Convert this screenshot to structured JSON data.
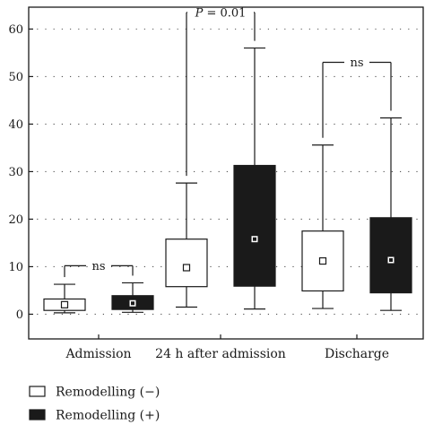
{
  "chart_data": {
    "type": "box",
    "categories": [
      "Admission",
      "24 h after admission",
      "Discharge"
    ],
    "series": [
      {
        "name": "Remodelling (−)",
        "fill": "#ffffff",
        "boxes": [
          {
            "min": 0.3,
            "q1": 0.8,
            "median": 2.0,
            "q3": 3.2,
            "max": 6.3
          },
          {
            "min": 1.5,
            "q1": 5.8,
            "median": 9.8,
            "q3": 15.8,
            "max": 27.6
          },
          {
            "min": 1.2,
            "q1": 4.9,
            "median": 11.2,
            "q3": 17.5,
            "max": 35.6
          }
        ]
      },
      {
        "name": "Remodelling (+)",
        "fill": "#1a1a1a",
        "boxes": [
          {
            "min": 0.4,
            "q1": 1.0,
            "median": 2.3,
            "q3": 3.9,
            "max": 6.6
          },
          {
            "min": 1.1,
            "q1": 5.9,
            "median": 15.8,
            "q3": 31.3,
            "max": 56.0
          },
          {
            "min": 0.8,
            "q1": 4.5,
            "median": 11.4,
            "q3": 20.3,
            "max": 41.3
          }
        ]
      }
    ],
    "annotations": [
      {
        "text": "ns",
        "category": 0,
        "level": 10.2
      },
      {
        "text_italic": "P",
        "text_rest": " = 0.01",
        "category": 1,
        "level": 63.5
      },
      {
        "text": "ns",
        "category": 2,
        "level": 53.0
      }
    ],
    "yticks": [
      0,
      10,
      20,
      30,
      40,
      50,
      60
    ],
    "ylim": [
      -5.2,
      64.6
    ],
    "grid": "dotted-horizontal",
    "legend_position": "bottom-left"
  }
}
